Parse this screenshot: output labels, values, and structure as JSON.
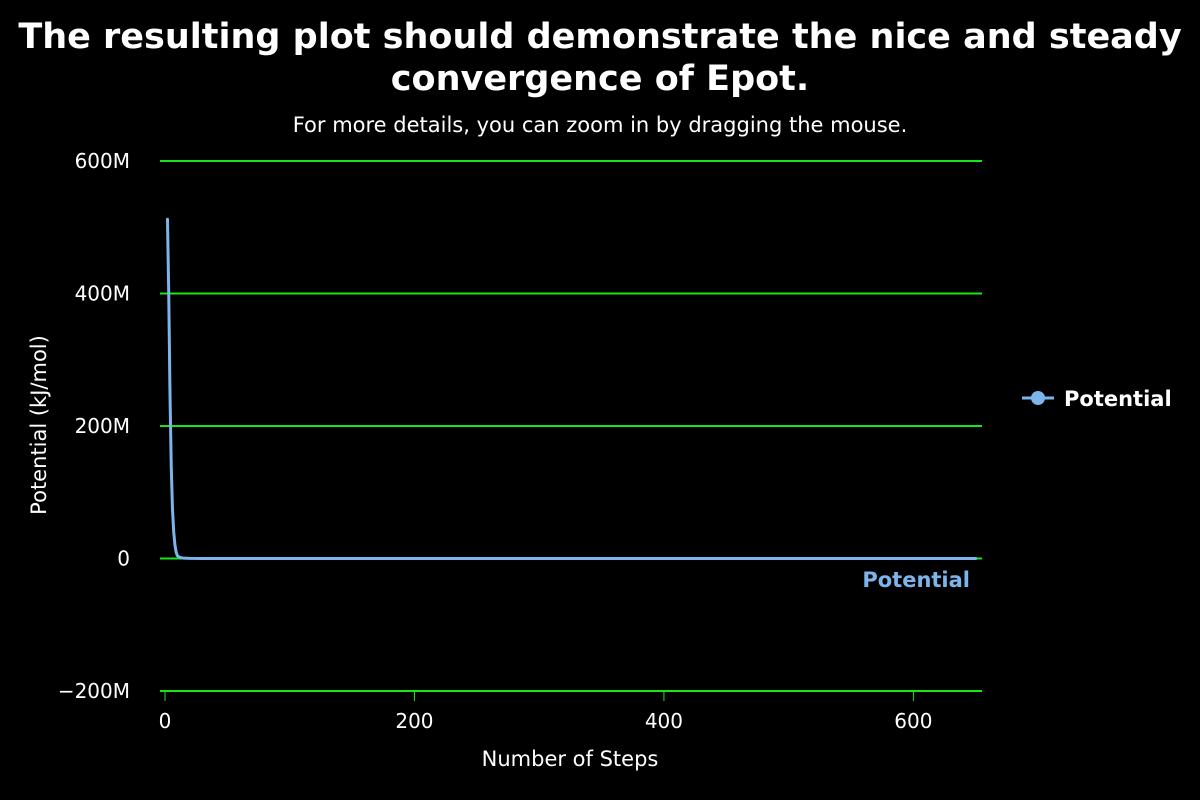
{
  "chart_data": {
    "type": "line",
    "title_lines": [
      "The resulting plot should demonstrate the nice and steady",
      "convergence of Epot."
    ],
    "subtitle": "For more details, you can zoom in by dragging the mouse.",
    "xlabel": "Number of Steps",
    "ylabel": "Potential (kJ/mol)",
    "xlim": [
      -4,
      655
    ],
    "ylim": [
      -200000000,
      600000000
    ],
    "x_ticks": [
      0,
      200,
      400,
      600
    ],
    "x_tick_labels": [
      "0",
      "200",
      "400",
      "600"
    ],
    "y_ticks": [
      -200000000,
      0,
      200000000,
      400000000,
      600000000
    ],
    "y_tick_labels": [
      "−200M",
      "0",
      "200M",
      "400M",
      "600M"
    ],
    "grid": true,
    "grid_axis": "y",
    "legend_position": "right",
    "series": [
      {
        "name": "Potential",
        "color": "#7cb5ec",
        "x": [
          2,
          3,
          4,
          5,
          6,
          7,
          8,
          9,
          10,
          12,
          15,
          20,
          30,
          50,
          100,
          150,
          200,
          300,
          400,
          500,
          600,
          650
        ],
        "values": [
          512000000,
          400000000,
          250000000,
          140000000,
          75000000,
          40000000,
          20000000,
          9000000,
          4000000,
          1500000,
          500000,
          200000,
          60000,
          20000,
          5000,
          2000,
          1000,
          500,
          300,
          200,
          100,
          100
        ]
      }
    ],
    "series_end_label": "Potential"
  },
  "colors": {
    "background": "#000000",
    "grid": "#19e619",
    "text": "#ffffff"
  }
}
